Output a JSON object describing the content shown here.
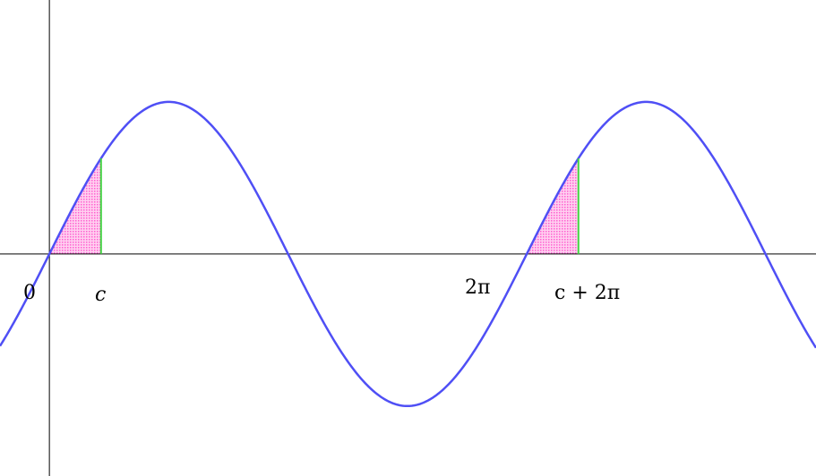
{
  "chart_data": {
    "type": "line",
    "function": "sin(x)",
    "xlim": [
      -0.65,
      10.09
    ],
    "ylim": [
      -1.46,
      1.67
    ],
    "grid": false,
    "c": 0.68,
    "shaded_regions": [
      {
        "from": 0,
        "to": 0.68
      },
      {
        "from": 6.2832,
        "to": 6.9632
      }
    ],
    "tick_labels": [
      {
        "x": 0,
        "text": "0"
      },
      {
        "x": 0.68,
        "text": "c"
      },
      {
        "x": 6.2832,
        "text": "2π"
      },
      {
        "x": 6.9632,
        "text": "c + 2π"
      }
    ],
    "colors": {
      "curve": "#4f4ff5",
      "shade": "#ff5fcf",
      "marker_line": "#44d444",
      "axes": "#000000"
    }
  }
}
